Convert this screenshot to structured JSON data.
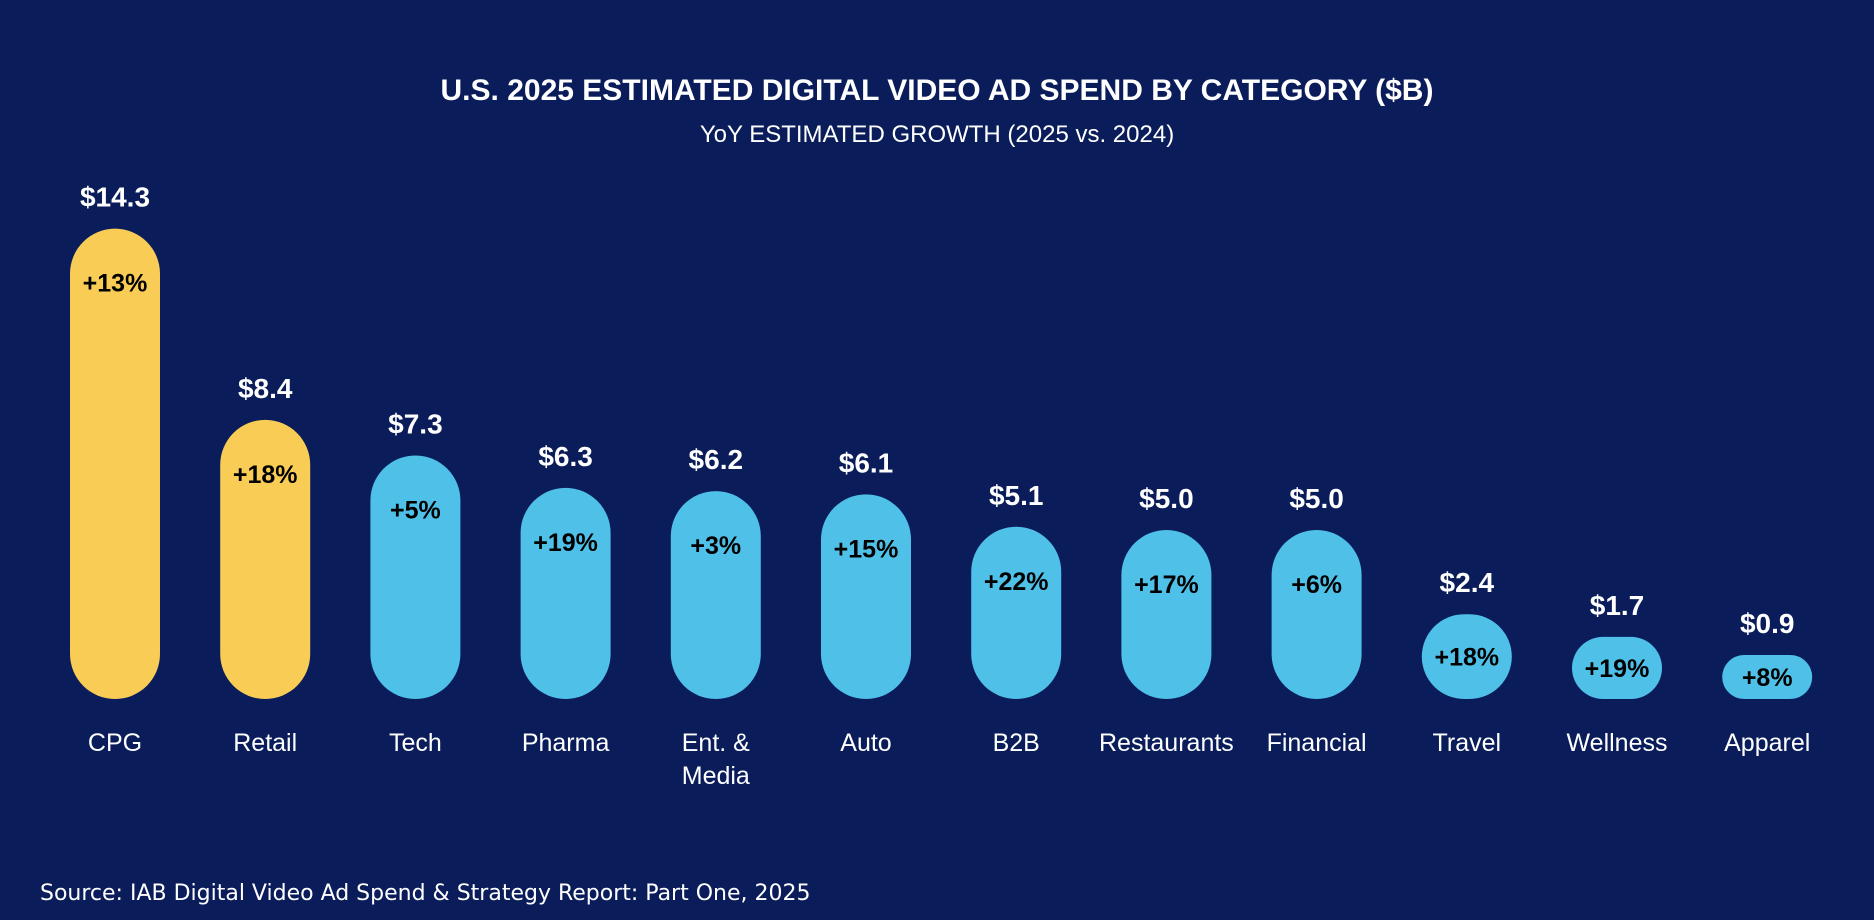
{
  "chart_data": {
    "type": "bar",
    "title": "U.S. 2025 ESTIMATED DIGITAL VIDEO AD SPEND BY CATEGORY ($B)",
    "subtitle": "YoY ESTIMATED GROWTH (2025 vs. 2024)",
    "categories": [
      "CPG",
      "Retail",
      "Tech",
      "Pharma",
      "Ent. &\nMedia",
      "Auto",
      "B2B",
      "Restaurants",
      "Financial",
      "Travel",
      "Wellness",
      "Apparel"
    ],
    "values": [
      14.3,
      8.4,
      7.3,
      6.3,
      6.2,
      6.1,
      5.1,
      5.0,
      5.0,
      2.4,
      1.7,
      0.9
    ],
    "value_labels": [
      "$14.3",
      "$8.4",
      "$7.3",
      "$6.3",
      "$6.2",
      "$6.1",
      "$5.1",
      "$5.0",
      "$5.0",
      "$2.4",
      "$1.7",
      "$0.9"
    ],
    "growth_labels": [
      "+13%",
      "+18%",
      "+5%",
      "+19%",
      "+3%",
      "+15%",
      "+22%",
      "+17%",
      "+6%",
      "+18%",
      "+19%",
      "+8%"
    ],
    "highlight_count": 2,
    "colors": {
      "background": "#0a1d5a",
      "highlight": "#f9cc55",
      "bar": "#4fc0e8"
    },
    "grid": false,
    "legend": "none",
    "ylim": [
      0,
      14.3
    ]
  },
  "source": "Source: IAB Digital Video Ad Spend & Strategy Report: Part One, 2025"
}
